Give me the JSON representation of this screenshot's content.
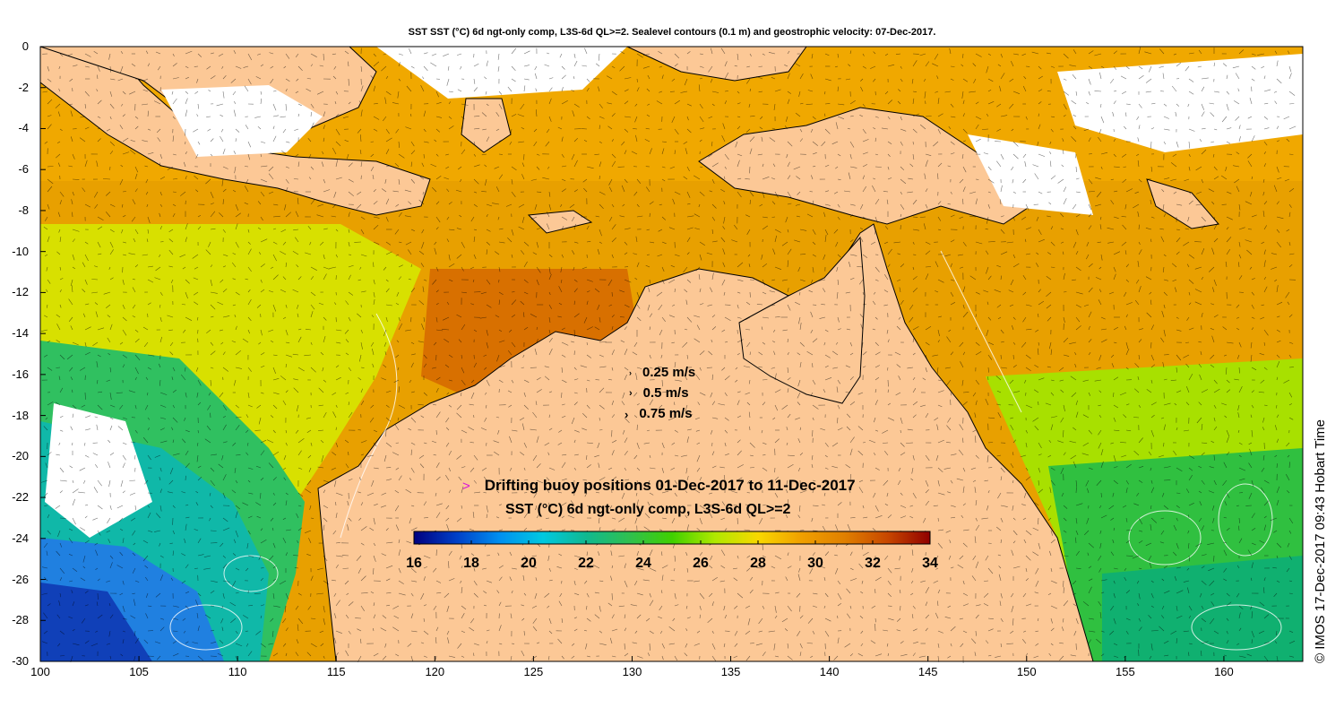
{
  "title": "SST SST (°C) 6d ngt-only comp, L3S-6d QL>=2. Sealevel contours (0.1 m) and geostrophic velocity: 07-Dec-2017.",
  "map": {
    "lon_range": [
      100,
      164
    ],
    "lat_range": [
      -30,
      0
    ],
    "lon_ticks": [
      "100",
      "105",
      "110",
      "115",
      "120",
      "125",
      "130",
      "135",
      "140",
      "145",
      "150",
      "155",
      "160"
    ],
    "lat_ticks": [
      "0",
      "-2",
      "-4",
      "-6",
      "-8",
      "-10",
      "-12",
      "-14",
      "-16",
      "-18",
      "-20",
      "-22",
      "-24",
      "-26",
      "-28",
      "-30"
    ],
    "land_color": "#fcc896",
    "no_data_color": "#ffffff",
    "contour_color": "#ffffff",
    "vector_color": "#000000"
  },
  "speed_legend": [
    {
      "marker": "arrow-small-icon",
      "label": "0.25 m/s"
    },
    {
      "marker": "arrow-medium-icon",
      "label": "0.5 m/s"
    },
    {
      "marker": "arrow-large-icon",
      "label": "0.75 m/s"
    }
  ],
  "buoy_legend": {
    "marker": ">",
    "marker_color": "#d814d8",
    "label": "Drifting buoy positions 01-Dec-2017 to 11-Dec-2017"
  },
  "colorbar": {
    "title": "SST (°C) 6d ngt-only comp, L3S-6d QL>=2",
    "min": 16,
    "max": 34,
    "ticks": [
      "16",
      "18",
      "20",
      "22",
      "24",
      "26",
      "28",
      "30",
      "32",
      "34"
    ],
    "colors": [
      "#00007f",
      "#0040c8",
      "#0090f0",
      "#00c8e0",
      "#10b890",
      "#30c050",
      "#40d000",
      "#b0e800",
      "#f8d800",
      "#f0a000",
      "#e08000",
      "#c84800",
      "#900000"
    ]
  },
  "credit": "© IMOS 17-Dec-2017 09:43 Hobart Time"
}
